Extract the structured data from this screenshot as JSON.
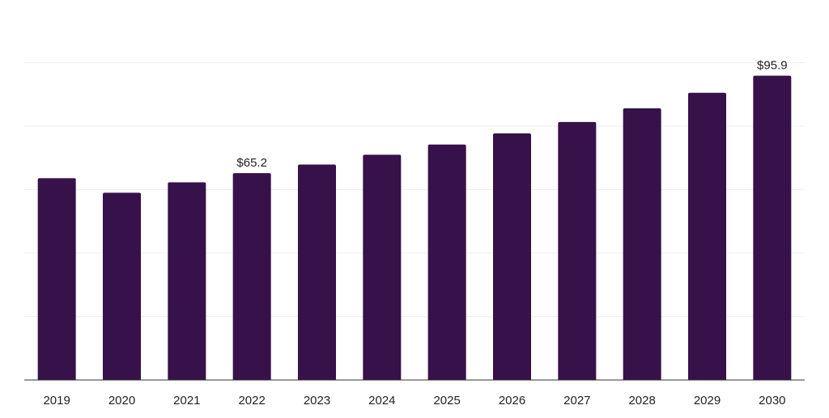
{
  "chart_data": {
    "type": "bar",
    "categories": [
      "2019",
      "2020",
      "2021",
      "2022",
      "2023",
      "2024",
      "2025",
      "2026",
      "2027",
      "2028",
      "2029",
      "2030"
    ],
    "values": [
      63.6,
      59.0,
      62.3,
      65.2,
      67.9,
      71.0,
      74.2,
      77.7,
      81.3,
      85.6,
      90.5,
      95.9
    ],
    "data_labels": [
      {
        "index": 3,
        "text": "$65.2"
      },
      {
        "index": 11,
        "text": "$95.9"
      }
    ],
    "title": "",
    "xlabel": "",
    "ylabel": "",
    "ylim": [
      0,
      120
    ],
    "gridlines": [
      0,
      20,
      40,
      60,
      80,
      100,
      120
    ],
    "grid": true,
    "bar_color": "#37114a",
    "legend": "none"
  }
}
